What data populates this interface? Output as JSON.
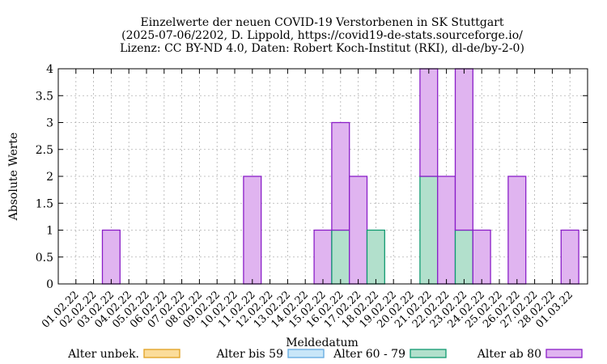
{
  "chart_data": {
    "type": "bar",
    "stacked": true,
    "title_lines": [
      "Einzelwerte der neuen COVID-19 Verstorbenen in SK Stuttgart",
      "(2025-07-06/2202, D. Lippold, https://covid19-de-stats.sourceforge.io/",
      "Lizenz: CC BY-ND 4.0, Daten: Robert Koch-Institut (RKI), dl-de/by-2-0)"
    ],
    "xlabel": "Meldedatum",
    "ylabel": "Absolute Werte",
    "ylim": [
      0,
      4
    ],
    "yticks": [
      "0",
      "0.5",
      "1",
      "1.5",
      "2",
      "2.5",
      "3",
      "3.5",
      "4"
    ],
    "grid": true,
    "legend_position": "bottom",
    "categories": [
      "01.02.22",
      "02.02.22",
      "03.02.22",
      "04.02.22",
      "05.02.22",
      "06.02.22",
      "07.02.22",
      "08.02.22",
      "09.02.22",
      "10.02.22",
      "11.02.22",
      "12.02.22",
      "13.02.22",
      "14.02.22",
      "15.02.22",
      "16.02.22",
      "17.02.22",
      "18.02.22",
      "19.02.22",
      "20.02.22",
      "21.02.22",
      "22.02.22",
      "23.02.22",
      "24.02.22",
      "25.02.22",
      "26.02.22",
      "27.02.22",
      "28.02.22",
      "01.03.22"
    ],
    "series": [
      {
        "name": "Alter unbek.",
        "color": "#fbdc9a",
        "edge": "#e0a020",
        "values": [
          0,
          0,
          0,
          0,
          0,
          0,
          0,
          0,
          0,
          0,
          0,
          0,
          0,
          0,
          0,
          0,
          0,
          0,
          0,
          0,
          0,
          0,
          0,
          0,
          0,
          0,
          0,
          0,
          0
        ]
      },
      {
        "name": "Alter bis 59",
        "color": "#c8e6f8",
        "edge": "#60a8e0",
        "values": [
          0,
          0,
          0,
          0,
          0,
          0,
          0,
          0,
          0,
          0,
          0,
          0,
          0,
          0,
          0,
          0,
          0,
          0,
          0,
          0,
          0,
          0,
          0,
          0,
          0,
          0,
          0,
          0,
          0
        ]
      },
      {
        "name": "Alter 60 - 79",
        "color": "#b2e0cc",
        "edge": "#109a70",
        "values": [
          0,
          0,
          0,
          0,
          0,
          0,
          0,
          0,
          0,
          0,
          0,
          0,
          0,
          0,
          0,
          1,
          0,
          1,
          0,
          0,
          2,
          0,
          1,
          0,
          0,
          0,
          0,
          0,
          0
        ]
      },
      {
        "name": "Alter ab 80",
        "color": "#e0b4f0",
        "edge": "#8a1ec8",
        "values": [
          0,
          0,
          1,
          0,
          0,
          0,
          0,
          0,
          0,
          0,
          2,
          0,
          0,
          0,
          1,
          2,
          2,
          0,
          0,
          0,
          2,
          2,
          3,
          1,
          0,
          2,
          0,
          0,
          1
        ]
      }
    ]
  }
}
